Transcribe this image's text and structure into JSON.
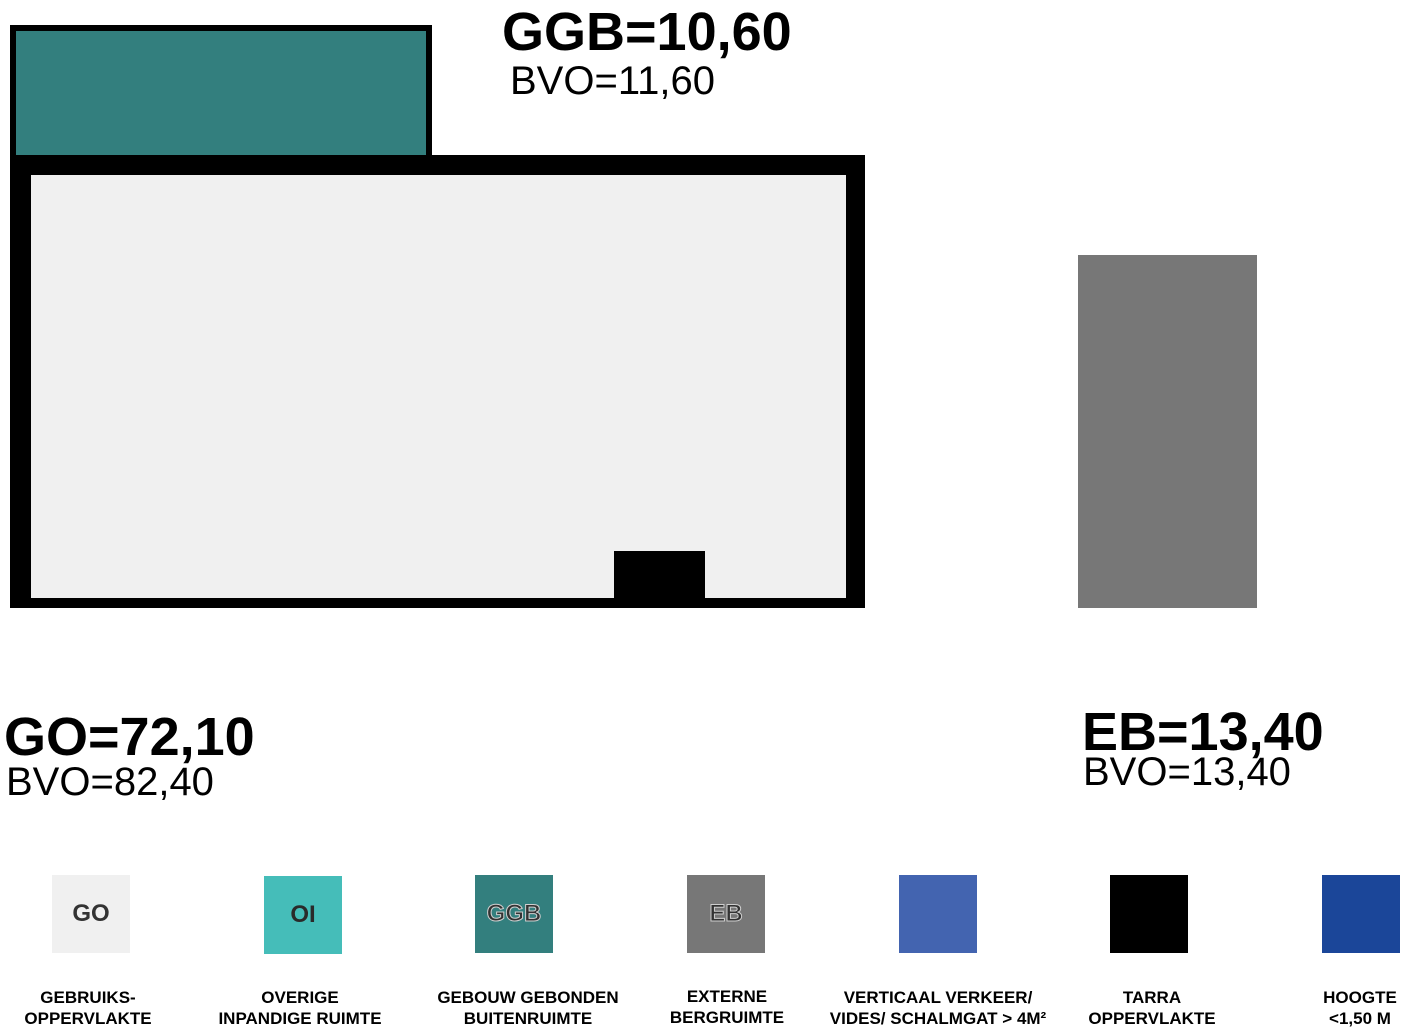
{
  "areas": {
    "ggb": {
      "main": "GGB=10,60",
      "bvo": "BVO=11,60"
    },
    "go": {
      "main": "GO=72,10",
      "bvo": "BVO=82,40"
    },
    "eb": {
      "main": "EB=13,40",
      "bvo": "BVO=13,40"
    }
  },
  "colors": {
    "go": "#f0f0f0",
    "oi": "#45bdb9",
    "ggb": "#337f7e",
    "eb": "#777777",
    "verkeer": "#4364b0",
    "tarra": "#000000",
    "hoogte": "#1b4699",
    "outline": "#000000"
  },
  "legend": [
    {
      "abbr": "GO",
      "label": "GEBRUIKS-\nOPPERVLAKTE",
      "color": "#f0f0f0",
      "text_color": "#333333"
    },
    {
      "abbr": "OI",
      "label": "OVERIGE\nINPANDIGE RUIMTE",
      "color": "#45bdb9",
      "text_color": "#2a2a2a"
    },
    {
      "abbr": "GGB",
      "label": "GEBOUW GEBONDEN\nBUITENRUIMTE",
      "color": "#337f7e",
      "text_color": "#333333"
    },
    {
      "abbr": "EB",
      "label": "EXTERNE\nBERGRUIMTE",
      "color": "#777777",
      "text_color": "#333333"
    },
    {
      "abbr": "",
      "label": "VERTICAAL VERKEER/\nVIDES/ SCHALMGAT > 4M²",
      "color": "#4364b0",
      "text_color": "#ffffff"
    },
    {
      "abbr": "",
      "label": "TARRA\nOPPERVLAKTE",
      "color": "#000000",
      "text_color": "#ffffff"
    },
    {
      "abbr": "",
      "label": "HOOGTE\n<1,50 M",
      "color": "#1b4699",
      "text_color": "#ffffff"
    }
  ]
}
